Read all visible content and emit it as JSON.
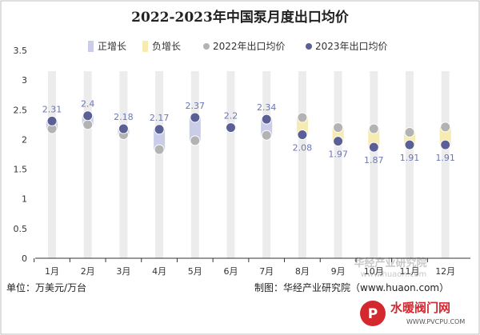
{
  "chart_data": {
    "type": "line",
    "title": "2022-2023年中国泵月度出口均价",
    "unit_note": "单位：万美元/万台",
    "source": "制图：华经产业研究院（www.huaon.com）",
    "categories": [
      "1月",
      "2月",
      "3月",
      "4月",
      "5月",
      "6月",
      "7月",
      "8月",
      "9月",
      "10月",
      "11月",
      "12月"
    ],
    "series": [
      {
        "name": "2022年出口均价",
        "values": [
          2.18,
          2.25,
          2.08,
          1.83,
          1.98,
          2.2,
          2.07,
          2.37,
          2.2,
          2.18,
          2.12,
          2.21
        ],
        "color": "#b3b3b3"
      },
      {
        "name": "2023年出口均价",
        "values": [
          2.31,
          2.4,
          2.18,
          2.17,
          2.37,
          2.2,
          2.34,
          2.08,
          1.97,
          1.87,
          1.91,
          1.91
        ],
        "color": "#5a6096"
      }
    ],
    "data_labels_2023": [
      "2.31",
      "2.4",
      "2.18",
      "2.17",
      "2.37",
      "2.2",
      "2.34",
      "2.08",
      "1.97",
      "1.87",
      "1.91",
      "1.91"
    ],
    "legend": [
      {
        "name": "正增长",
        "color": "#c9cde8",
        "marker": "bar"
      },
      {
        "name": "负增长",
        "color": "#f6ebb0",
        "marker": "bar"
      },
      {
        "name": "2022年出口均价",
        "color": "#b3b3b3",
        "marker": "dot"
      },
      {
        "name": "2023年出口均价",
        "color": "#5a6096",
        "marker": "dot"
      }
    ],
    "legend_position": "top",
    "ylim": [
      0,
      3.5
    ],
    "yticks": [
      "0",
      "0.5",
      "1",
      "1.5",
      "2",
      "2.5",
      "3",
      "3.5"
    ],
    "grid": false,
    "colors": {
      "positive": "#c9cde8",
      "negative": "#f6ebb0",
      "column_bg": "#ececec"
    }
  },
  "watermark": {
    "text": "华经产业研究院",
    "url": "www.huaon.com"
  },
  "logo": {
    "text": "水暖阀门网",
    "url": "WWW.PVCPU.COM"
  }
}
